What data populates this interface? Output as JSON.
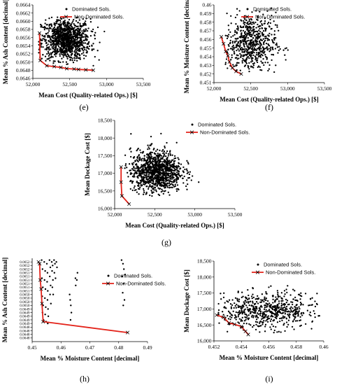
{
  "legend_dominated": "Dominated Sols.",
  "legend_nondominated": "Non-Dominated Sols.",
  "colors": {
    "dominated": "#000000",
    "nondominated": "#e32219",
    "axis": "#000000"
  },
  "chart_data": [
    {
      "id": "e",
      "caption": "(e)",
      "type": "scatter",
      "xlabel": "Mean Cost (Quality-related  Ops.) [$]",
      "ylabel": "Mean % Ash Content [decimal]",
      "xlim": [
        52000,
        53500
      ],
      "ylim": [
        0.0646,
        0.0664
      ],
      "xticks": [
        52000,
        52500,
        53000,
        53500
      ],
      "xtick_labels": [
        "52,000",
        "52,500",
        "53,000",
        "53,500"
      ],
      "yticks": [
        0.0646,
        0.0648,
        0.065,
        0.0652,
        0.0654,
        0.0656,
        0.0658,
        0.066,
        0.0662,
        0.0664
      ],
      "ytick_labels": [
        "0.0646",
        "0.0648",
        "0.0650",
        "0.0652",
        "0.0654",
        "0.0656",
        "0.0658",
        "0.0660",
        "0.0662",
        "0.0664"
      ],
      "legend_position": "top-right",
      "dominated_cloud": {
        "n": 1100,
        "x_center": 52450,
        "x_spread": 165,
        "y_center": 0.06555,
        "y_spread": 0.00025,
        "x_range": [
          52080,
          53300
        ],
        "y_range": [
          0.0649,
          0.0661
        ]
      },
      "series": [
        {
          "name": "Non-Dominated Sols.",
          "x": [
            52090,
            52100,
            52190,
            52290,
            52380,
            52460,
            52560,
            52620,
            52720,
            52820
          ],
          "y": [
            0.06571,
            0.06504,
            0.06491,
            0.06489,
            0.06487,
            0.06484,
            0.06483,
            0.06482,
            0.06481,
            0.0648
          ]
        }
      ]
    },
    {
      "id": "f",
      "caption": "(f)",
      "type": "scatter",
      "xlabel": "Mean Cost (Quality-related  Ops.) [$]",
      "ylabel": "Mean % Moisture Content [decimal]",
      "xlim": [
        52000,
        53500
      ],
      "ylim": [
        0.451,
        0.46
      ],
      "xticks": [
        52000,
        52500,
        53000,
        53500
      ],
      "xtick_labels": [
        "52,000",
        "52,500",
        "53,000",
        "53,500"
      ],
      "yticks": [
        0.451,
        0.452,
        0.453,
        0.454,
        0.455,
        0.456,
        0.457,
        0.458,
        0.459,
        0.46
      ],
      "ytick_labels": [
        "0.451",
        "0.452",
        "0.453",
        "0.454",
        "0.455",
        "0.456",
        "0.457",
        "0.458",
        "0.459",
        "0.46"
      ],
      "legend_position": "top-right",
      "dominated_cloud": {
        "n": 620,
        "x_center": 52500,
        "x_spread": 170,
        "y_center": 0.4555,
        "y_spread": 0.0018,
        "x_range": [
          52120,
          53350
        ],
        "y_range": [
          0.4522,
          0.4598
        ]
      },
      "series": [
        {
          "name": "Non-Dominated Sols.",
          "x": [
            52100,
            52130,
            52160,
            52190,
            52210,
            52250,
            52300,
            52370
          ],
          "y": [
            0.4563,
            0.4555,
            0.4546,
            0.4541,
            0.4534,
            0.4527,
            0.4523,
            0.452
          ]
        }
      ]
    },
    {
      "id": "g",
      "caption": "(g)",
      "type": "scatter",
      "xlabel": "Mean Cost (Quality-related  Ops.) [$]",
      "ylabel": "Mean Dockage Cost [$]",
      "xlim": [
        52000,
        53500
      ],
      "ylim": [
        16000,
        18500
      ],
      "xticks": [
        52000,
        52500,
        53000,
        53500
      ],
      "xtick_labels": [
        "52,000",
        "52,500",
        "53,000",
        "53,500"
      ],
      "yticks": [
        16000,
        16500,
        17000,
        17500,
        18000,
        18500
      ],
      "ytick_labels": [
        "16,000",
        "16,500",
        "17,000",
        "17,500",
        "18,000",
        "18,500"
      ],
      "legend_position": "top-right",
      "dominated_cloud": {
        "n": 1100,
        "x_center": 52520,
        "x_spread": 160,
        "y_center": 17050,
        "y_spread": 300,
        "x_range": [
          52100,
          53300
        ],
        "y_range": [
          16350,
          18300
        ]
      },
      "series": [
        {
          "name": "Non-Dominated Sols.",
          "x": [
            52080,
            52080,
            52090,
            52180
          ],
          "y": [
            17180,
            16750,
            16360,
            16130
          ]
        }
      ]
    },
    {
      "id": "h",
      "caption": "(h)",
      "type": "scatter",
      "xlabel": "Mean % Moisture Content [decimal]",
      "ylabel": "Mean % Ash Content [decimal]",
      "xlim": [
        0.45,
        0.49
      ],
      "ylim": [
        0.06476,
        0.06522
      ],
      "xticks": [
        0.45,
        0.46,
        0.47,
        0.48,
        0.49
      ],
      "xtick_labels": [
        "0.45",
        "0.46",
        "0.47",
        "0.48",
        "0.49"
      ],
      "yticks": [
        0.06478,
        0.0648,
        0.06482,
        0.06484,
        0.06486,
        0.06488,
        0.0649,
        0.06492,
        0.06494,
        0.06496,
        0.06498,
        0.065,
        0.06502,
        0.06504,
        0.06506,
        0.06508,
        0.0651,
        0.06512,
        0.06514,
        0.06516,
        0.06518,
        0.0652
      ],
      "ytick_labels": [
        "0.0648",
        "0.0648",
        "0.0648",
        "0.0648",
        "0.0649",
        "0.0649",
        "0.0649",
        "0.0649",
        "0.0649",
        "0.0650",
        "0.0650",
        "0.0650",
        "0.0650",
        "0.0651",
        "0.0651",
        "0.0651",
        "0.0651",
        "0.0651",
        "0.0651",
        "0.0652",
        "0.0652",
        "0.0652"
      ],
      "legend_position": "right",
      "dominated_points": [
        [
          0.4533,
          0.06521
        ],
        [
          0.4536,
          0.06516
        ],
        [
          0.4534,
          0.06511
        ],
        [
          0.4537,
          0.06506
        ],
        [
          0.4535,
          0.06501
        ],
        [
          0.4538,
          0.06496
        ],
        [
          0.4536,
          0.06492
        ],
        [
          0.4539,
          0.06488
        ],
        [
          0.4542,
          0.0652
        ],
        [
          0.4545,
          0.06515
        ],
        [
          0.4543,
          0.0651
        ],
        [
          0.4546,
          0.06505
        ],
        [
          0.4544,
          0.065
        ],
        [
          0.4547,
          0.06495
        ],
        [
          0.4545,
          0.06491
        ],
        [
          0.4548,
          0.06487
        ],
        [
          0.4551,
          0.06519
        ],
        [
          0.4553,
          0.06514
        ],
        [
          0.4552,
          0.06509
        ],
        [
          0.4554,
          0.06504
        ],
        [
          0.4553,
          0.06499
        ],
        [
          0.4555,
          0.06494
        ],
        [
          0.4556,
          0.0649
        ],
        [
          0.4554,
          0.06486
        ],
        [
          0.456,
          0.06521
        ],
        [
          0.4563,
          0.06517
        ],
        [
          0.4561,
          0.06512
        ],
        [
          0.4564,
          0.06507
        ],
        [
          0.4562,
          0.06502
        ],
        [
          0.4565,
          0.06497
        ],
        [
          0.4568,
          0.0652
        ],
        [
          0.4571,
          0.06518
        ],
        [
          0.4569,
          0.06515
        ],
        [
          0.4572,
          0.0651
        ],
        [
          0.457,
          0.06506
        ],
        [
          0.4573,
          0.06502
        ],
        [
          0.4576,
          0.06521
        ],
        [
          0.4579,
          0.06519
        ],
        [
          0.4577,
          0.06514
        ],
        [
          0.4581,
          0.06511
        ],
        [
          0.4584,
          0.0652
        ],
        [
          0.4586,
          0.06517
        ],
        [
          0.465,
          0.06511
        ],
        [
          0.4651,
          0.06507
        ],
        [
          0.4655,
          0.0651
        ],
        [
          0.4657,
          0.06514
        ],
        [
          0.463,
          0.06502
        ],
        [
          0.4632,
          0.06499
        ],
        [
          0.4634,
          0.06496
        ],
        [
          0.4636,
          0.06492
        ],
        [
          0.4633,
          0.06488
        ],
        [
          0.481,
          0.06521
        ],
        [
          0.4815,
          0.06519
        ],
        [
          0.4818,
          0.06516
        ],
        [
          0.4812,
          0.06512
        ],
        [
          0.4817,
          0.06508
        ],
        [
          0.4814,
          0.06503
        ],
        [
          0.482,
          0.06499
        ],
        [
          0.4816,
          0.06496
        ],
        [
          0.4822,
          0.06513
        ]
      ],
      "series": [
        {
          "name": "Non-Dominated Sols.",
          "x": [
            0.4522,
            0.4526,
            0.4528,
            0.4531,
            0.4534,
            0.4538,
            0.4831
          ],
          "y": [
            0.0652,
            0.06519,
            0.0651,
            0.06505,
            0.06497,
            0.06487,
            0.06481
          ]
        }
      ]
    },
    {
      "id": "i",
      "caption": "(i)",
      "type": "scatter",
      "xlabel": "Mean % Moisture Content [decimal]",
      "ylabel": "Mean Dockage Cost [$]",
      "xlim": [
        0.452,
        0.46
      ],
      "ylim": [
        16000,
        18500
      ],
      "xticks": [
        0.452,
        0.454,
        0.456,
        0.458,
        0.46
      ],
      "xtick_labels": [
        "0.452",
        "0.454",
        "0.456",
        "0.458",
        "0.46"
      ],
      "yticks": [
        16000,
        16500,
        17000,
        17500,
        18000,
        18500
      ],
      "ytick_labels": [
        "16,000",
        "16,500",
        "17,000",
        "17,500",
        "18,000",
        "18,500"
      ],
      "legend_position": "top-right",
      "dominated_cloud": {
        "n": 620,
        "x_center": 0.4558,
        "x_spread": 0.0019,
        "y_center": 16950,
        "y_spread": 280,
        "x_range": [
          0.4522,
          0.4598
        ],
        "y_range": [
          16200,
          17900
        ]
      },
      "series": [
        {
          "name": "Non-Dominated Sols.",
          "x": [
            0.4522,
            0.4527,
            0.4531,
            0.4535,
            0.454,
            0.4543,
            0.4545
          ],
          "y": [
            16810,
            16740,
            16560,
            16520,
            16450,
            16300,
            16200
          ]
        }
      ]
    }
  ]
}
